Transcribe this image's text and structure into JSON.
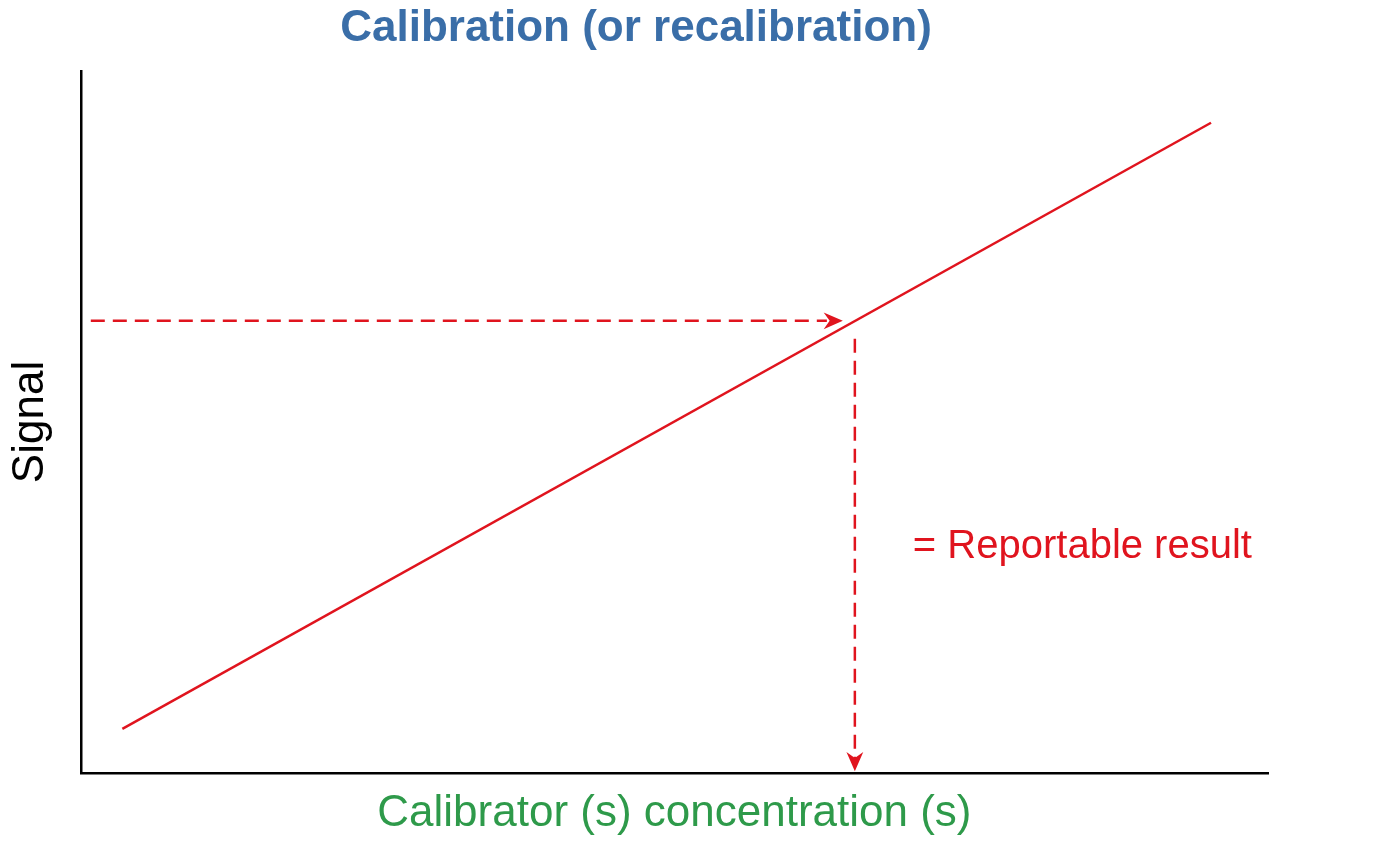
{
  "chart_data": {
    "type": "line",
    "title": "Calibration (or recalibration)",
    "x_label": "Calibrator (s) concentration (s)",
    "y_label": "Signal",
    "x": [
      3.5,
      95.2
    ],
    "values": [
      6.3,
      92.6
    ],
    "color": "#e0141e",
    "xlim": [
      0,
      100
    ],
    "ylim": [
      0,
      100
    ],
    "grid": false,
    "tick_labels": false,
    "reading": {
      "x": 65.2,
      "y": 64.4,
      "label": "= Reportable result"
    }
  }
}
